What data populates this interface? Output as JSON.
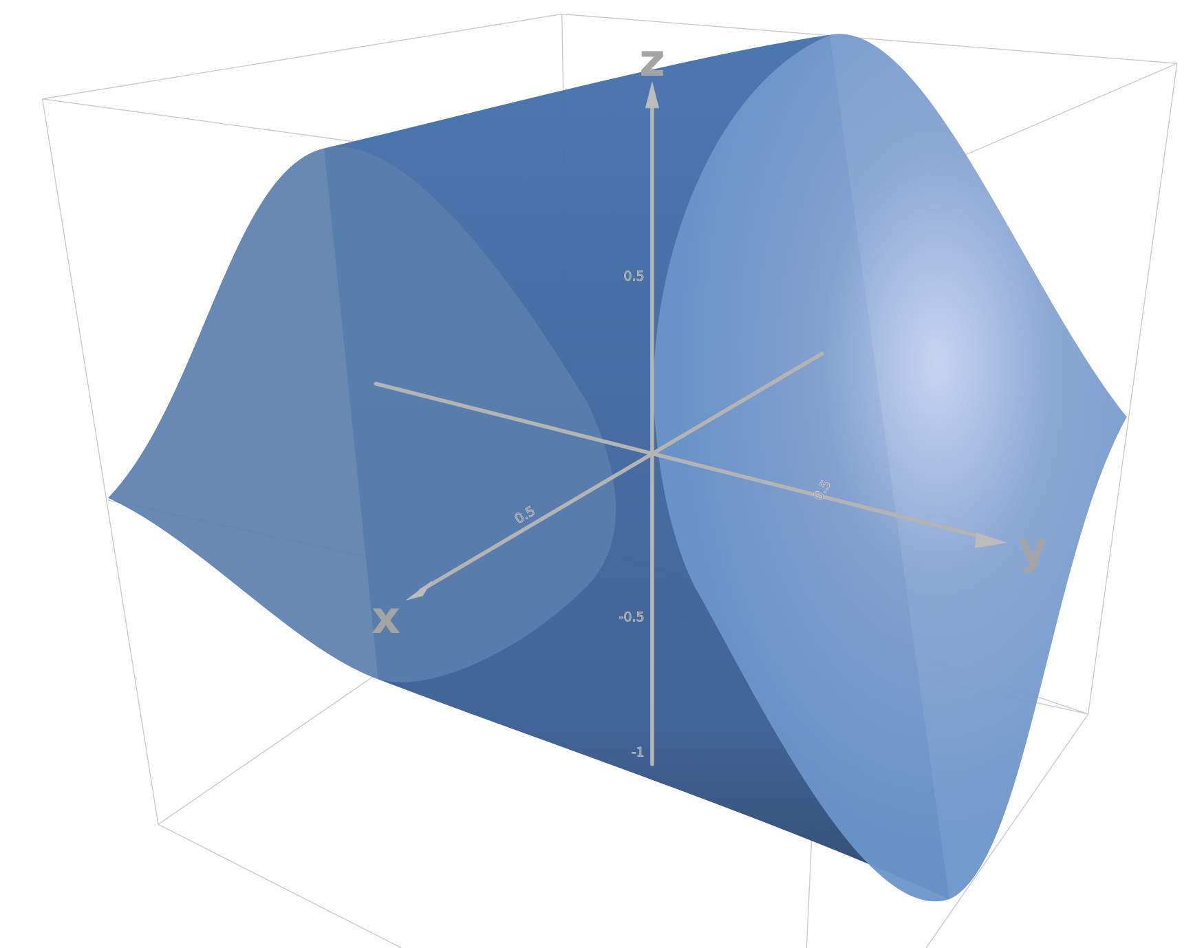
{
  "axes": {
    "z": {
      "label": "z",
      "ticks": [
        0.5,
        -0.5,
        -1
      ]
    },
    "x": {
      "label": "x",
      "ticks": [
        0.5
      ]
    },
    "y": {
      "label": "y",
      "ticks": [
        0.5
      ]
    }
  }
}
